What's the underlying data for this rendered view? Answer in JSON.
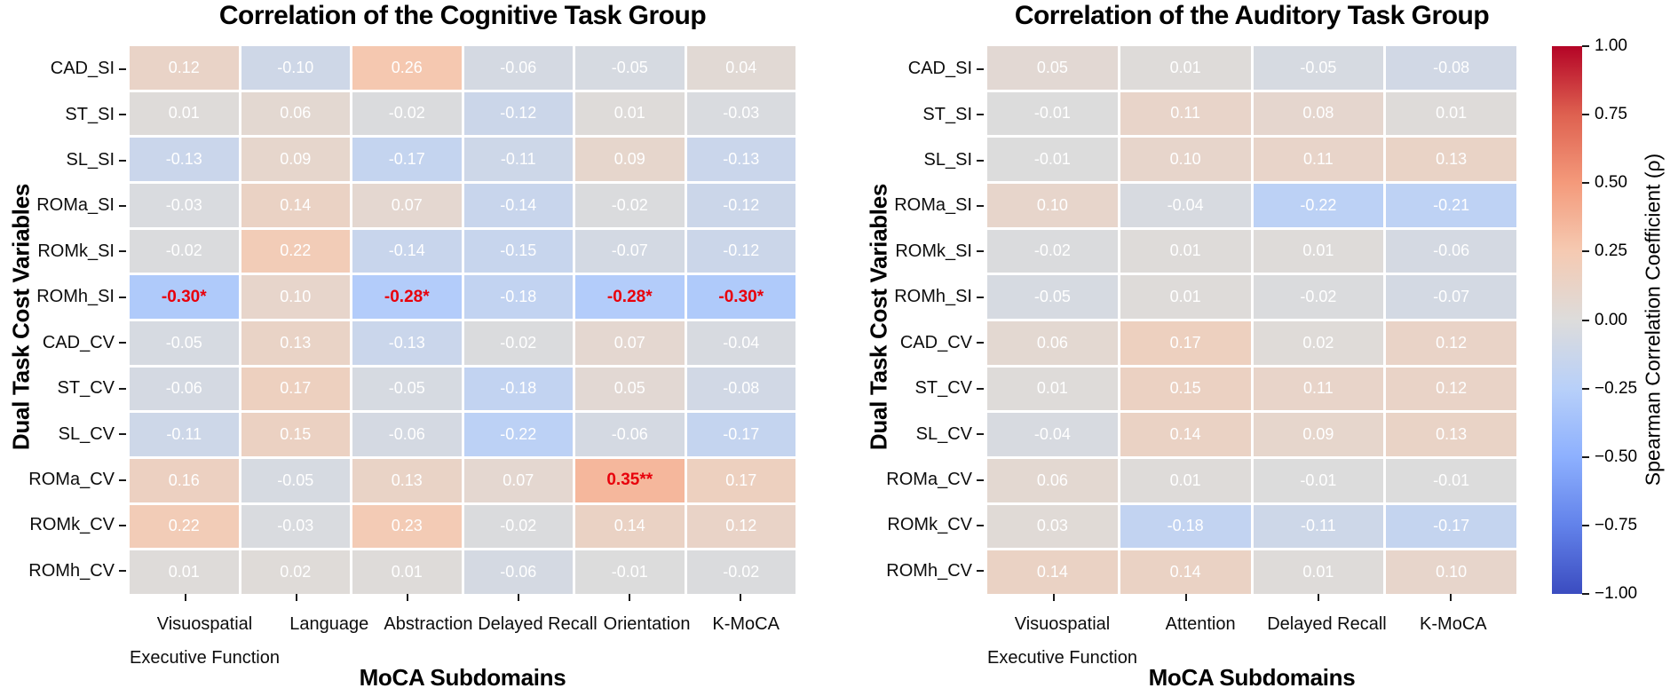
{
  "figure": {
    "background": "#ffffff",
    "text_color": "#000000",
    "cell_text_color": "#ffffff",
    "significant_text_color": "#e8000b",
    "tick_color": "#1a1a1a"
  },
  "colormap": {
    "name": "coolwarm",
    "vmin": -1,
    "vmax": 1,
    "anchors": [
      [
        59,
        76,
        192
      ],
      [
        98,
        130,
        234
      ],
      [
        141,
        176,
        254
      ],
      [
        184,
        208,
        249
      ],
      [
        221,
        220,
        219
      ],
      [
        245,
        202,
        178
      ],
      [
        244,
        154,
        123
      ],
      [
        222,
        97,
        80
      ],
      [
        180,
        4,
        38
      ]
    ]
  },
  "colorbar": {
    "label": "Spearman Correlation Coefficient (ρ)",
    "ticks": [
      "1.00",
      "0.75",
      "0.50",
      "0.25",
      "0.00",
      "−0.25",
      "−0.50",
      "−0.75",
      "−1.00"
    ],
    "vmin": -1,
    "vmax": 1
  },
  "chart_data": [
    {
      "type": "heatmap",
      "title": "Correlation of the Cognitive Task Group",
      "xlabel": "MoCA Subdomains",
      "ylabel": "Dual Task Cost Variables",
      "x_categories": [
        [
          "Visuospatial",
          "Executive Function"
        ],
        [
          "Language"
        ],
        [
          "Abstraction"
        ],
        [
          "Delayed Recall"
        ],
        [
          "Orientation"
        ],
        [
          "K-MoCA"
        ]
      ],
      "y_categories": [
        "CAD_SI",
        "ST_SI",
        "SL_SI",
        "ROMa_SI",
        "ROMk_SI",
        "ROMh_SI",
        "CAD_CV",
        "ST_CV",
        "SL_CV",
        "ROMa_CV",
        "ROMk_CV",
        "ROMh_CV"
      ],
      "values": [
        [
          0.12,
          -0.1,
          0.26,
          -0.06,
          -0.05,
          0.04
        ],
        [
          0.01,
          0.06,
          -0.02,
          -0.12,
          0.01,
          -0.03
        ],
        [
          -0.13,
          0.09,
          -0.17,
          -0.11,
          0.09,
          -0.13
        ],
        [
          -0.03,
          0.14,
          0.07,
          -0.14,
          -0.02,
          -0.12
        ],
        [
          -0.02,
          0.22,
          -0.14,
          -0.15,
          -0.07,
          -0.12
        ],
        [
          -0.3,
          0.1,
          -0.28,
          -0.18,
          -0.28,
          -0.3
        ],
        [
          -0.05,
          0.13,
          -0.13,
          -0.02,
          0.07,
          -0.04
        ],
        [
          -0.06,
          0.17,
          -0.05,
          -0.18,
          0.05,
          -0.08
        ],
        [
          -0.11,
          0.15,
          -0.06,
          -0.22,
          -0.06,
          -0.17
        ],
        [
          0.16,
          -0.05,
          0.13,
          0.07,
          0.35,
          0.17
        ],
        [
          0.22,
          -0.03,
          0.23,
          -0.02,
          0.14,
          0.12
        ],
        [
          0.01,
          0.02,
          0.01,
          -0.06,
          -0.01,
          -0.02
        ]
      ],
      "labels": [
        [
          "0.12",
          "-0.10",
          "0.26",
          "-0.06",
          "-0.05",
          "0.04"
        ],
        [
          "0.01",
          "0.06",
          "-0.02",
          "-0.12",
          "0.01",
          "-0.03"
        ],
        [
          "-0.13",
          "0.09",
          "-0.17",
          "-0.11",
          "0.09",
          "-0.13"
        ],
        [
          "-0.03",
          "0.14",
          "0.07",
          "-0.14",
          "-0.02",
          "-0.12"
        ],
        [
          "-0.02",
          "0.22",
          "-0.14",
          "-0.15",
          "-0.07",
          "-0.12"
        ],
        [
          "-0.30*",
          "0.10",
          "-0.28*",
          "-0.18",
          "-0.28*",
          "-0.30*"
        ],
        [
          "-0.05",
          "0.13",
          "-0.13",
          "-0.02",
          "0.07",
          "-0.04"
        ],
        [
          "-0.06",
          "0.17",
          "-0.05",
          "-0.18",
          "0.05",
          "-0.08"
        ],
        [
          "-0.11",
          "0.15",
          "-0.06",
          "-0.22",
          "-0.06",
          "-0.17"
        ],
        [
          "0.16",
          "-0.05",
          "0.13",
          "0.07",
          "0.35**",
          "0.17"
        ],
        [
          "0.22",
          "-0.03",
          "0.23",
          "-0.02",
          "0.14",
          "0.12"
        ],
        [
          "0.01",
          "0.02",
          "0.01",
          "-0.06",
          "-0.01",
          "-0.02"
        ]
      ]
    },
    {
      "type": "heatmap",
      "title": "Correlation of the Auditory Task Group",
      "xlabel": "MoCA Subdomains",
      "ylabel": "Dual Task Cost Variables",
      "x_categories": [
        [
          "Visuospatial",
          "Executive Function"
        ],
        [
          "Attention"
        ],
        [
          "Delayed Recall"
        ],
        [
          "K-MoCA"
        ]
      ],
      "y_categories": [
        "CAD_SI",
        "ST_SI",
        "SL_SI",
        "ROMa_SI",
        "ROMk_SI",
        "ROMh_SI",
        "CAD_CV",
        "ST_CV",
        "SL_CV",
        "ROMa_CV",
        "ROMk_CV",
        "ROMh_CV"
      ],
      "values": [
        [
          0.05,
          0.01,
          -0.05,
          -0.08
        ],
        [
          -0.01,
          0.11,
          0.08,
          0.01
        ],
        [
          -0.01,
          0.1,
          0.11,
          0.13
        ],
        [
          0.1,
          -0.04,
          -0.22,
          -0.21
        ],
        [
          -0.02,
          0.01,
          0.01,
          -0.06
        ],
        [
          -0.05,
          0.01,
          -0.02,
          -0.07
        ],
        [
          0.06,
          0.17,
          0.02,
          0.12
        ],
        [
          0.01,
          0.15,
          0.11,
          0.12
        ],
        [
          -0.04,
          0.14,
          0.09,
          0.13
        ],
        [
          0.06,
          0.01,
          -0.01,
          -0.01
        ],
        [
          0.03,
          -0.18,
          -0.11,
          -0.17
        ],
        [
          0.14,
          0.14,
          0.01,
          0.1
        ]
      ],
      "labels": [
        [
          "0.05",
          "0.01",
          "-0.05",
          "-0.08"
        ],
        [
          "-0.01",
          "0.11",
          "0.08",
          "0.01"
        ],
        [
          "-0.01",
          "0.10",
          "0.11",
          "0.13"
        ],
        [
          "0.10",
          "-0.04",
          "-0.22",
          "-0.21"
        ],
        [
          "-0.02",
          "0.01",
          "0.01",
          "-0.06"
        ],
        [
          "-0.05",
          "0.01",
          "-0.02",
          "-0.07"
        ],
        [
          "0.06",
          "0.17",
          "0.02",
          "0.12"
        ],
        [
          "0.01",
          "0.15",
          "0.11",
          "0.12"
        ],
        [
          "-0.04",
          "0.14",
          "0.09",
          "0.13"
        ],
        [
          "0.06",
          "0.01",
          "-0.01",
          "-0.01"
        ],
        [
          "0.03",
          "-0.18",
          "-0.11",
          "-0.17"
        ],
        [
          "0.14",
          "0.14",
          "0.01",
          "0.10"
        ]
      ]
    }
  ]
}
